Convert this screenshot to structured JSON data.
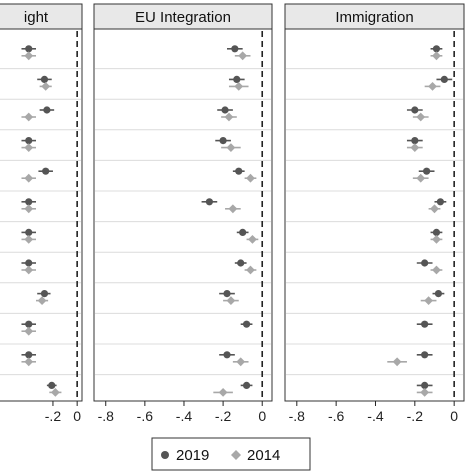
{
  "colors": {
    "series_2019": "#555555",
    "series_2014": "#a8a8a8",
    "strip_fill": "#e8e8e8",
    "frame": "#333333",
    "gridline": "#dcdcdc"
  },
  "legend": {
    "placement": "bottom-center",
    "items": [
      {
        "label": "2019",
        "marker": "circle"
      },
      {
        "label": "2014",
        "marker": "diamond"
      }
    ]
  },
  "chart_data": [
    {
      "type": "scatter",
      "title": "ight",
      "xlim": [
        -0.72,
        0.04
      ],
      "xticks": [
        {
          "value": -0.2,
          "label": "-.2"
        },
        {
          "value": 0,
          "label": "0"
        }
      ],
      "reference_line": 0,
      "rows": 12,
      "series": [
        {
          "name": "2019",
          "points": [
            {
              "row": 1,
              "x": -0.4,
              "lo": -0.46,
              "hi": -0.34
            },
            {
              "row": 2,
              "x": -0.27,
              "lo": -0.33,
              "hi": -0.21
            },
            {
              "row": 3,
              "x": -0.25,
              "lo": -0.31,
              "hi": -0.19
            },
            {
              "row": 4,
              "x": -0.4,
              "lo": -0.46,
              "hi": -0.34
            },
            {
              "row": 5,
              "x": -0.26,
              "lo": -0.32,
              "hi": -0.2
            },
            {
              "row": 6,
              "x": -0.4,
              "lo": -0.46,
              "hi": -0.34
            },
            {
              "row": 7,
              "x": -0.4,
              "lo": -0.46,
              "hi": -0.34
            },
            {
              "row": 8,
              "x": -0.4,
              "lo": -0.46,
              "hi": -0.34
            },
            {
              "row": 9,
              "x": -0.27,
              "lo": -0.33,
              "hi": -0.22
            },
            {
              "row": 10,
              "x": -0.4,
              "lo": -0.46,
              "hi": -0.34
            },
            {
              "row": 11,
              "x": -0.4,
              "lo": -0.46,
              "hi": -0.34
            },
            {
              "row": 12,
              "x": -0.21,
              "lo": -0.25,
              "hi": -0.17
            }
          ]
        },
        {
          "name": "2014",
          "points": [
            {
              "row": 1,
              "x": -0.4,
              "lo": -0.46,
              "hi": -0.34
            },
            {
              "row": 2,
              "x": -0.26,
              "lo": -0.31,
              "hi": -0.21
            },
            {
              "row": 3,
              "x": -0.4,
              "lo": -0.46,
              "hi": -0.34
            },
            {
              "row": 4,
              "x": -0.4,
              "lo": -0.46,
              "hi": -0.34
            },
            {
              "row": 5,
              "x": -0.4,
              "lo": -0.46,
              "hi": -0.34
            },
            {
              "row": 6,
              "x": -0.4,
              "lo": -0.46,
              "hi": -0.34
            },
            {
              "row": 7,
              "x": -0.4,
              "lo": -0.46,
              "hi": -0.34
            },
            {
              "row": 8,
              "x": -0.4,
              "lo": -0.46,
              "hi": -0.34
            },
            {
              "row": 9,
              "x": -0.29,
              "lo": -0.34,
              "hi": -0.24
            },
            {
              "row": 10,
              "x": -0.4,
              "lo": -0.46,
              "hi": -0.34
            },
            {
              "row": 11,
              "x": -0.4,
              "lo": -0.46,
              "hi": -0.34
            },
            {
              "row": 12,
              "x": -0.18,
              "lo": -0.23,
              "hi": -0.13
            }
          ]
        }
      ]
    },
    {
      "type": "scatter",
      "title": "EU Integration",
      "xlim": [
        -0.86,
        0.05
      ],
      "xticks": [
        {
          "value": -0.8,
          "label": "-.8"
        },
        {
          "value": -0.6,
          "label": "-.6"
        },
        {
          "value": -0.4,
          "label": "-.4"
        },
        {
          "value": -0.2,
          "label": "-.2"
        },
        {
          "value": 0,
          "label": "0"
        }
      ],
      "reference_line": 0,
      "rows": 12,
      "series": [
        {
          "name": "2019",
          "points": [
            {
              "row": 1,
              "x": -0.14,
              "lo": -0.18,
              "hi": -0.1
            },
            {
              "row": 2,
              "x": -0.13,
              "lo": -0.17,
              "hi": -0.09
            },
            {
              "row": 3,
              "x": -0.19,
              "lo": -0.23,
              "hi": -0.15
            },
            {
              "row": 4,
              "x": -0.2,
              "lo": -0.24,
              "hi": -0.16
            },
            {
              "row": 5,
              "x": -0.12,
              "lo": -0.15,
              "hi": -0.09
            },
            {
              "row": 6,
              "x": -0.27,
              "lo": -0.31,
              "hi": -0.23
            },
            {
              "row": 7,
              "x": -0.1,
              "lo": -0.13,
              "hi": -0.07
            },
            {
              "row": 8,
              "x": -0.11,
              "lo": -0.14,
              "hi": -0.08
            },
            {
              "row": 9,
              "x": -0.18,
              "lo": -0.22,
              "hi": -0.14
            },
            {
              "row": 10,
              "x": -0.08,
              "lo": -0.11,
              "hi": -0.05
            },
            {
              "row": 11,
              "x": -0.18,
              "lo": -0.22,
              "hi": -0.14
            },
            {
              "row": 12,
              "x": -0.08,
              "lo": -0.11,
              "hi": -0.05
            }
          ]
        },
        {
          "name": "2014",
          "points": [
            {
              "row": 1,
              "x": -0.1,
              "lo": -0.14,
              "hi": -0.06
            },
            {
              "row": 2,
              "x": -0.12,
              "lo": -0.17,
              "hi": -0.07
            },
            {
              "row": 3,
              "x": -0.17,
              "lo": -0.21,
              "hi": -0.13
            },
            {
              "row": 4,
              "x": -0.16,
              "lo": -0.21,
              "hi": -0.11
            },
            {
              "row": 5,
              "x": -0.06,
              "lo": -0.09,
              "hi": -0.03
            },
            {
              "row": 6,
              "x": -0.15,
              "lo": -0.19,
              "hi": -0.11
            },
            {
              "row": 7,
              "x": -0.05,
              "lo": -0.08,
              "hi": -0.02
            },
            {
              "row": 8,
              "x": -0.06,
              "lo": -0.09,
              "hi": -0.03
            },
            {
              "row": 9,
              "x": -0.16,
              "lo": -0.2,
              "hi": -0.12
            },
            {
              "row": 10,
              "x": null,
              "lo": null,
              "hi": null
            },
            {
              "row": 11,
              "x": -0.11,
              "lo": -0.15,
              "hi": -0.07
            },
            {
              "row": 12,
              "x": -0.2,
              "lo": -0.25,
              "hi": -0.15
            }
          ]
        }
      ]
    },
    {
      "type": "scatter",
      "title": "Immigration",
      "xlim": [
        -0.86,
        0.05
      ],
      "xticks": [
        {
          "value": -0.8,
          "label": "-.8"
        },
        {
          "value": -0.6,
          "label": "-.6"
        },
        {
          "value": -0.4,
          "label": "-.4"
        },
        {
          "value": -0.2,
          "label": "-.2"
        },
        {
          "value": 0,
          "label": "0"
        }
      ],
      "reference_line": 0,
      "rows": 12,
      "series": [
        {
          "name": "2019",
          "points": [
            {
              "row": 1,
              "x": -0.09,
              "lo": -0.12,
              "hi": -0.06
            },
            {
              "row": 2,
              "x": -0.05,
              "lo": -0.09,
              "hi": -0.01
            },
            {
              "row": 3,
              "x": -0.2,
              "lo": -0.24,
              "hi": -0.16
            },
            {
              "row": 4,
              "x": -0.2,
              "lo": -0.24,
              "hi": -0.16
            },
            {
              "row": 5,
              "x": -0.14,
              "lo": -0.18,
              "hi": -0.1
            },
            {
              "row": 6,
              "x": -0.07,
              "lo": -0.1,
              "hi": -0.04
            },
            {
              "row": 7,
              "x": -0.09,
              "lo": -0.12,
              "hi": -0.06
            },
            {
              "row": 8,
              "x": -0.15,
              "lo": -0.19,
              "hi": -0.11
            },
            {
              "row": 9,
              "x": -0.08,
              "lo": -0.11,
              "hi": -0.05
            },
            {
              "row": 10,
              "x": -0.15,
              "lo": -0.19,
              "hi": -0.11
            },
            {
              "row": 11,
              "x": -0.15,
              "lo": -0.19,
              "hi": -0.11
            },
            {
              "row": 12,
              "x": -0.15,
              "lo": -0.19,
              "hi": -0.11
            }
          ]
        },
        {
          "name": "2014",
          "points": [
            {
              "row": 1,
              "x": -0.09,
              "lo": -0.12,
              "hi": -0.06
            },
            {
              "row": 2,
              "x": -0.11,
              "lo": -0.15,
              "hi": -0.07
            },
            {
              "row": 3,
              "x": -0.17,
              "lo": -0.21,
              "hi": -0.13
            },
            {
              "row": 4,
              "x": -0.2,
              "lo": -0.24,
              "hi": -0.16
            },
            {
              "row": 5,
              "x": -0.17,
              "lo": -0.21,
              "hi": -0.13
            },
            {
              "row": 6,
              "x": -0.1,
              "lo": -0.13,
              "hi": -0.07
            },
            {
              "row": 7,
              "x": -0.09,
              "lo": -0.12,
              "hi": -0.06
            },
            {
              "row": 8,
              "x": -0.09,
              "lo": -0.12,
              "hi": -0.06
            },
            {
              "row": 9,
              "x": -0.13,
              "lo": -0.17,
              "hi": -0.09
            },
            {
              "row": 10,
              "x": null,
              "lo": null,
              "hi": null
            },
            {
              "row": 11,
              "x": -0.29,
              "lo": -0.34,
              "hi": -0.24
            },
            {
              "row": 12,
              "x": -0.15,
              "lo": -0.19,
              "hi": -0.11
            }
          ]
        }
      ]
    }
  ]
}
